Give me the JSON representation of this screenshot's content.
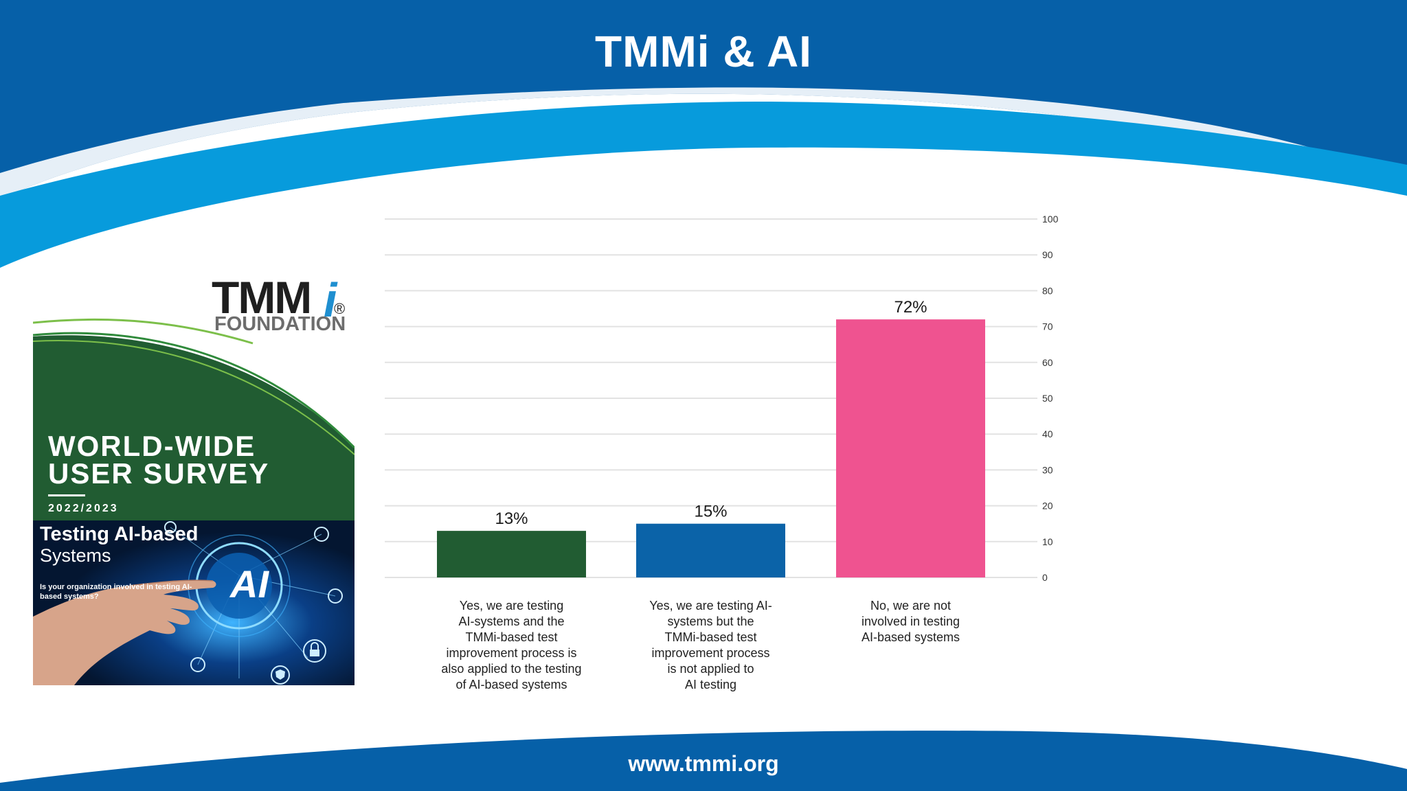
{
  "slide": {
    "title": "TMMi & AI",
    "footer": "www.tmmi.org",
    "colors": {
      "navy": "#0660a8",
      "sky": "#079bdc",
      "green": "#215c32",
      "blue": "#0b63a8",
      "pink": "#ef5390"
    }
  },
  "cover": {
    "logo_main": "TMM",
    "logo_i": "i",
    "logo_reg": "®",
    "logo_sub": "FOUNDATION",
    "title_line1": "WORLD-WIDE",
    "title_line2": "USER SURVEY",
    "year": "2022/2023",
    "subtitle_line1": "Testing AI-based",
    "subtitle_line2": "Systems",
    "question": "Is your organization involved in testing AI-based systems?",
    "ai_badge": "AI",
    "icons": [
      "hand-icon",
      "ai-globe-icon",
      "network-icon",
      "lock-icon",
      "shield-icon"
    ]
  },
  "chart_data": {
    "type": "bar",
    "categories": [
      "Yes, we are testing AI-systems and the TMMi-based test improvement process is also applied to the testing of AI-based systems",
      "Yes, we are testing AI-systems but the TMMi-based test improvement process is not applied to AI testing",
      "No, we are not involved in testing AI-based systems"
    ],
    "category_lines": [
      [
        "Yes, we are testing",
        "AI-systems and the",
        "TMMi-based test",
        "improvement process is",
        "also applied to the testing",
        "of AI-based systems"
      ],
      [
        "Yes, we are testing AI-",
        "systems but the",
        "TMMi-based test",
        "improvement process",
        "is not applied to",
        "AI testing"
      ],
      [
        "No, we are not",
        "involved in testing",
        "AI-based systems"
      ]
    ],
    "values": [
      13,
      15,
      72
    ],
    "data_labels": [
      "13%",
      "15%",
      "72%"
    ],
    "colors": [
      "#215c32",
      "#0b63a8",
      "#ef5390"
    ],
    "y_ticks": [
      "0",
      "10",
      "20",
      "30",
      "40",
      "50",
      "60",
      "70",
      "80",
      "90",
      "100"
    ],
    "ylim": [
      0,
      100
    ],
    "y_axis_position": "right",
    "grid": true
  }
}
